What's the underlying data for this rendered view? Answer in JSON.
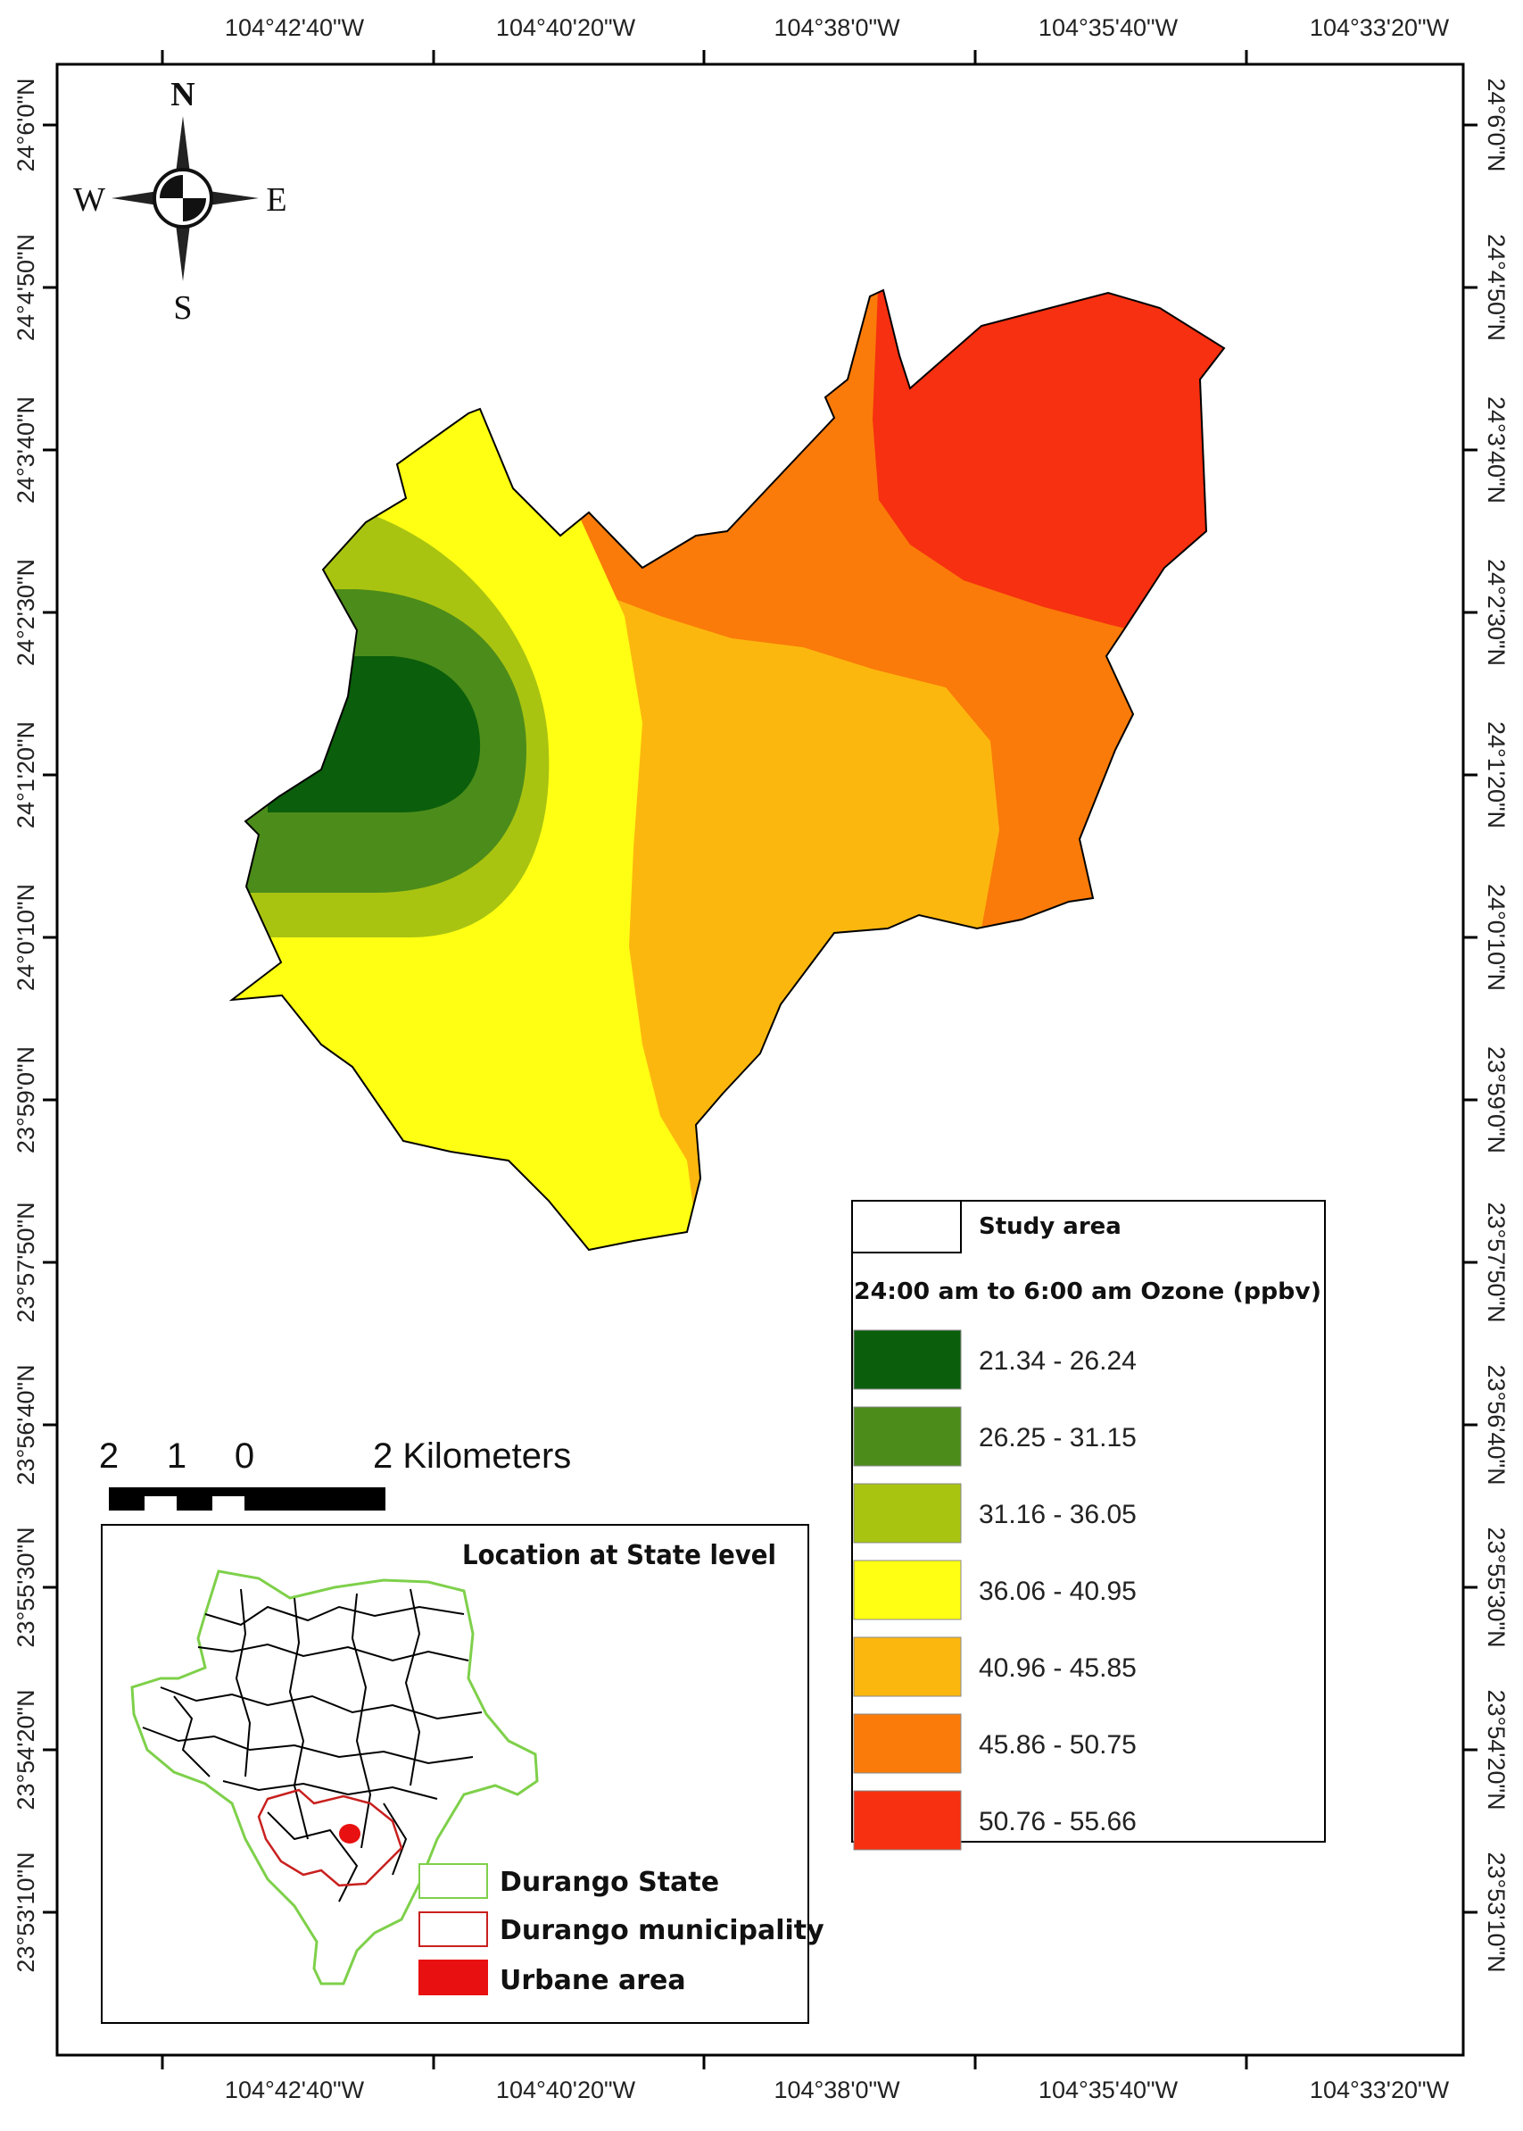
{
  "map": {
    "graticule": {
      "top_labels": [
        "104°42'40\"W",
        "104°40'20\"W",
        "104°38'0\"W",
        "104°35'40\"W",
        "104°33'20\"W"
      ],
      "bottom_labels": [
        "104°42'40\"W",
        "104°40'20\"W",
        "104°38'0\"W",
        "104°35'40\"W",
        "104°33'20\"W"
      ],
      "left_labels": [
        "24°6'0\"N",
        "24°4'50\"N",
        "24°3'40\"N",
        "24°2'30\"N",
        "24°1'20\"N",
        "24°0'10\"N",
        "23°59'0\"N",
        "23°57'50\"N",
        "23°56'40\"N",
        "23°55'30\"N",
        "23°54'20\"N",
        "23°53'10\"N"
      ],
      "right_labels": [
        "24°6'0\"N",
        "24°4'50\"N",
        "24°3'40\"N",
        "24°2'30\"N",
        "24°1'20\"N",
        "24°0'10\"N",
        "23°59'0\"N",
        "23°57'50\"N",
        "23°56'40\"N",
        "23°55'30\"N",
        "23°54'20\"N",
        "23°53'10\"N"
      ]
    },
    "compass": {
      "north": "N",
      "south": "S",
      "east": "E",
      "west": "W"
    },
    "scale_bar": {
      "labels": [
        "2",
        "1",
        "0",
        "2 Kilometers"
      ]
    },
    "legend": {
      "study_area_label": "Study area",
      "title": "24:00 am to 6:00 am Ozone (ppbv)",
      "classes": [
        {
          "label": "21.34 - 26.24",
          "color": "#0b5e0b"
        },
        {
          "label": "26.25 - 31.15",
          "color": "#4c8c1a"
        },
        {
          "label": "31.16 - 36.05",
          "color": "#a9c410"
        },
        {
          "label": "36.06 - 40.95",
          "color": "#ffff14"
        },
        {
          "label": "40.96 - 45.85",
          "color": "#fcb70f"
        },
        {
          "label": "45.86 - 50.75",
          "color": "#fa7b09"
        },
        {
          "label": "50.76 - 55.66",
          "color": "#f63010"
        }
      ]
    },
    "inset": {
      "title": "Location at State level",
      "legend": [
        {
          "label": "Durango State",
          "color": "#7ed04a"
        },
        {
          "label": "Durango municipality",
          "color": "#c8201e"
        },
        {
          "label": "Urbane area",
          "color": "#e81010"
        }
      ]
    }
  }
}
